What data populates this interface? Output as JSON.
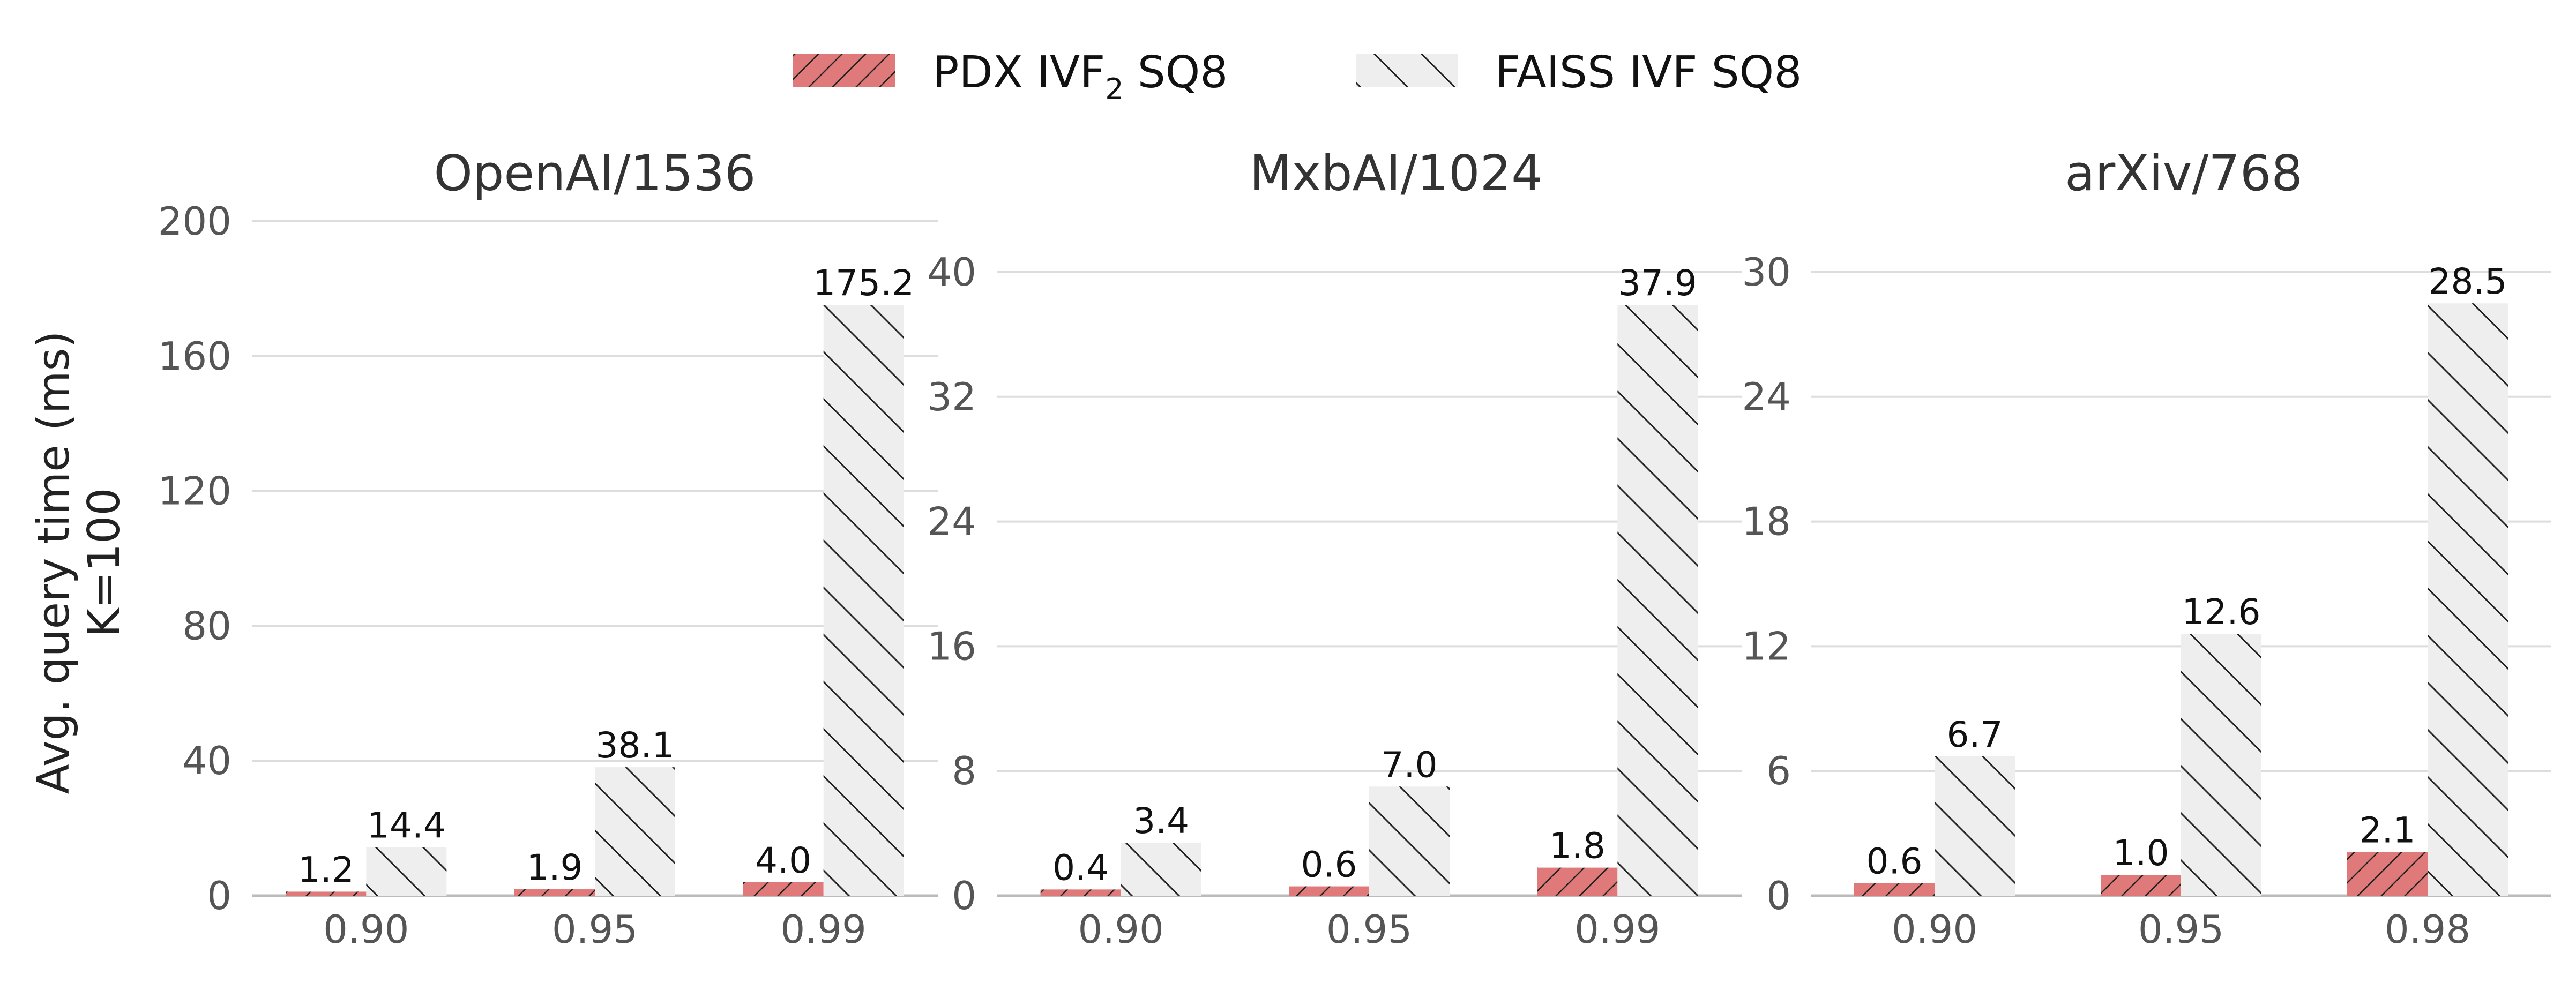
{
  "legend": {
    "pdx_main": "PDX IVF",
    "pdx_sub": "2",
    "pdx_tail": " SQ8",
    "faiss": "FAISS IVF SQ8"
  },
  "ylabel": {
    "line1": "Avg. query time (ms)",
    "line2": "K=100"
  },
  "colors": {
    "pdx": "#e07a7a",
    "faiss": "#eeeeee",
    "hatch": "#222222"
  },
  "chart_data": [
    {
      "type": "bar",
      "title": "OpenAI/1536",
      "categories": [
        "0.90",
        "0.95",
        "0.99"
      ],
      "series": [
        {
          "name": "PDX IVF2 SQ8",
          "values": [
            1.2,
            1.9,
            4.0
          ]
        },
        {
          "name": "FAISS IVF SQ8",
          "values": [
            14.4,
            38.1,
            175.2
          ]
        }
      ],
      "value_labels": [
        [
          "1.2",
          "1.9",
          "4.0"
        ],
        [
          "14.4",
          "38.1",
          "175.2"
        ]
      ],
      "ylim": [
        0,
        200
      ],
      "yticks": [
        0,
        40,
        80,
        120,
        160,
        200
      ],
      "grid": true
    },
    {
      "type": "bar",
      "title": "MxbAI/1024",
      "categories": [
        "0.90",
        "0.95",
        "0.99"
      ],
      "series": [
        {
          "name": "PDX IVF2 SQ8",
          "values": [
            0.4,
            0.6,
            1.8
          ]
        },
        {
          "name": "FAISS IVF SQ8",
          "values": [
            3.4,
            7.0,
            37.9
          ]
        }
      ],
      "value_labels": [
        [
          "0.4",
          "0.6",
          "1.8"
        ],
        [
          "3.4",
          "7.0",
          "37.9"
        ]
      ],
      "ylim": [
        0,
        40
      ],
      "yticks": [
        0,
        8,
        16,
        24,
        32,
        40
      ],
      "grid": true
    },
    {
      "type": "bar",
      "title": "arXiv/768",
      "categories": [
        "0.90",
        "0.95",
        "0.98"
      ],
      "series": [
        {
          "name": "PDX IVF2 SQ8",
          "values": [
            0.6,
            1.0,
            2.1
          ]
        },
        {
          "name": "FAISS IVF SQ8",
          "values": [
            6.7,
            12.6,
            28.5
          ]
        }
      ],
      "value_labels": [
        [
          "0.6",
          "1.0",
          "2.1"
        ],
        [
          "6.7",
          "12.6",
          "28.5"
        ]
      ],
      "ylim": [
        0,
        30
      ],
      "yticks": [
        0,
        6,
        12,
        18,
        24,
        30
      ],
      "grid": true
    }
  ]
}
